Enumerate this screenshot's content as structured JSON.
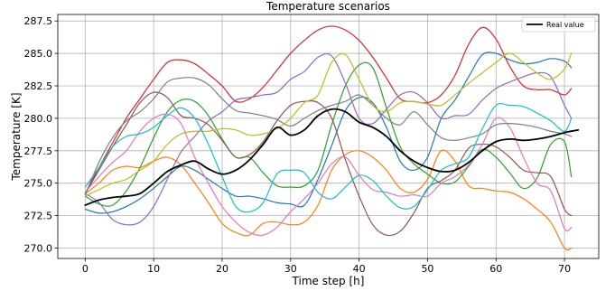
{
  "chart_data": {
    "type": "line",
    "title": "Temperature scenarios",
    "xlabel": "Time step [h]",
    "ylabel": "Temperature [K]",
    "xlim": [
      -4,
      75
    ],
    "ylim": [
      269.2,
      288.0
    ],
    "xticks": [
      0,
      10,
      20,
      30,
      40,
      50,
      60,
      70
    ],
    "yticks": [
      270.0,
      272.5,
      275.0,
      277.5,
      280.0,
      282.5,
      285.0,
      287.5
    ],
    "ytick_labels": [
      "270.0",
      "272.5",
      "275.0",
      "277.5",
      "280.0",
      "282.5",
      "285.0",
      "287.5"
    ],
    "grid": true,
    "legend": {
      "placement": "top-right",
      "entries": [
        "Real value"
      ]
    },
    "series": [
      {
        "name": "Real value",
        "color": "#000000",
        "width": 1.8,
        "x": [
          0,
          2,
          4,
          6,
          8,
          10,
          12,
          14,
          16,
          18,
          20,
          22,
          24,
          26,
          28,
          30,
          32,
          34,
          36,
          38,
          40,
          42,
          44,
          46,
          48,
          50,
          52,
          54,
          56,
          58,
          60,
          62,
          64,
          66,
          68,
          70,
          72
        ],
        "y": [
          273.3,
          273.7,
          273.9,
          274.0,
          274.2,
          275.0,
          275.9,
          276.4,
          276.7,
          276.1,
          275.7,
          276.0,
          276.8,
          278.0,
          279.3,
          278.7,
          279.1,
          280.2,
          280.7,
          280.5,
          279.7,
          279.3,
          278.6,
          277.5,
          276.7,
          276.2,
          275.9,
          276.0,
          276.6,
          277.5,
          278.2,
          278.4,
          278.3,
          278.4,
          278.6,
          278.9,
          279.1
        ]
      },
      {
        "color": "#1f77b4",
        "x": [
          0,
          2,
          4,
          6,
          8,
          10,
          12,
          14,
          16,
          18,
          20,
          22,
          24,
          26,
          28,
          30,
          32,
          34,
          36,
          38,
          40,
          42,
          44,
          46,
          48,
          50,
          52,
          54,
          56,
          58,
          60,
          62,
          64,
          66,
          68,
          70,
          71
        ],
        "y": [
          273.0,
          272.7,
          272.8,
          273.2,
          273.8,
          274.6,
          275.5,
          276.3,
          276.0,
          275.3,
          274.6,
          274.0,
          274.0,
          273.8,
          273.5,
          273.4,
          273.3,
          275.3,
          277.9,
          280.6,
          281.6,
          281.2,
          279.3,
          276.7,
          276.0,
          277.0,
          280.0,
          281.4,
          283.2,
          284.9,
          285.0,
          284.5,
          284.2,
          284.3,
          284.6,
          284.4,
          283.9
        ]
      },
      {
        "color": "#ff7f0e",
        "x": [
          0,
          2,
          4,
          6,
          8,
          10,
          12,
          14,
          16,
          18,
          20,
          22,
          24,
          26,
          28,
          30,
          32,
          34,
          36,
          38,
          40,
          42,
          44,
          46,
          48,
          50,
          52,
          54,
          56,
          58,
          60,
          62,
          64,
          66,
          68,
          70,
          71
        ],
        "y": [
          274.2,
          275.0,
          276.0,
          276.3,
          276.2,
          276.7,
          277.0,
          276.4,
          275.0,
          273.5,
          271.9,
          271.2,
          271.0,
          271.9,
          272.0,
          271.8,
          272.0,
          273.3,
          276.0,
          277.2,
          277.5,
          277.0,
          276.0,
          274.6,
          274.3,
          275.3,
          277.5,
          276.7,
          274.8,
          274.6,
          274.4,
          274.3,
          273.8,
          273.0,
          272.0,
          270.0,
          270.0
        ]
      },
      {
        "color": "#2ca02c",
        "x": [
          0,
          2,
          4,
          6,
          8,
          10,
          12,
          14,
          16,
          18,
          20,
          22,
          24,
          26,
          28,
          30,
          32,
          34,
          36,
          38,
          40,
          42,
          44,
          46,
          48,
          50,
          52,
          54,
          56,
          58,
          60,
          62,
          64,
          66,
          68,
          70,
          71
        ],
        "y": [
          274.0,
          273.4,
          273.3,
          274.4,
          276.2,
          278.5,
          280.5,
          281.4,
          281.3,
          280.2,
          278.4,
          277.0,
          277.0,
          275.8,
          274.8,
          274.7,
          274.8,
          276.0,
          279.5,
          282.5,
          284.1,
          283.9,
          280.8,
          277.8,
          276.5,
          275.7,
          275.0,
          275.1,
          276.3,
          277.6,
          277.0,
          275.8,
          274.6,
          275.4,
          278.0,
          278.2,
          275.5
        ]
      },
      {
        "color": "#d62728",
        "x": [
          0,
          2,
          4,
          6,
          8,
          10,
          12,
          14,
          16,
          18,
          20,
          22,
          24,
          26,
          28,
          30,
          32,
          34,
          36,
          38,
          40,
          42,
          44,
          46,
          48,
          50,
          52,
          54,
          56,
          58,
          60,
          62,
          64,
          66,
          68,
          70,
          71
        ],
        "y": [
          274.2,
          276.2,
          278.1,
          280.0,
          281.5,
          283.0,
          284.3,
          284.5,
          284.2,
          283.4,
          282.5,
          281.3,
          281.5,
          282.4,
          283.7,
          285.0,
          286.0,
          286.8,
          287.1,
          286.8,
          286.0,
          284.7,
          283.1,
          281.5,
          281.3,
          281.2,
          281.8,
          283.3,
          285.7,
          287.0,
          286.1,
          284.0,
          282.5,
          282.2,
          282.2,
          281.8,
          282.3
        ]
      },
      {
        "color": "#9467bd",
        "x": [
          0,
          2,
          4,
          6,
          8,
          10,
          12,
          14,
          16,
          18,
          20,
          22,
          24,
          26,
          28,
          30,
          32,
          34,
          36,
          38,
          40,
          42,
          44,
          46,
          48,
          50,
          52,
          54,
          56,
          58,
          60,
          62,
          64,
          66,
          68,
          70,
          71
        ],
        "y": [
          274.2,
          273.5,
          272.2,
          271.8,
          272.0,
          273.2,
          275.3,
          277.4,
          278.6,
          279.8,
          280.5,
          281.4,
          281.6,
          281.8,
          282.0,
          283.0,
          283.6,
          284.7,
          284.8,
          282.7,
          280.0,
          279.6,
          280.7,
          281.8,
          282.0,
          281.2,
          280.0,
          280.2,
          280.3,
          281.4,
          282.3,
          282.8,
          283.2,
          283.5,
          283.2,
          281.0,
          280.0
        ]
      },
      {
        "color": "#8c564b",
        "x": [
          0,
          2,
          4,
          6,
          8,
          10,
          12,
          14,
          16,
          18,
          20,
          22,
          24,
          26,
          28,
          30,
          32,
          34,
          36,
          38,
          40,
          42,
          44,
          46,
          48,
          50,
          52,
          54,
          56,
          58,
          60,
          62,
          64,
          66,
          68,
          70,
          71
        ],
        "y": [
          274.2,
          276.0,
          277.8,
          279.5,
          281.2,
          282.0,
          281.6,
          280.2,
          280.0,
          279.5,
          278.3,
          277.0,
          277.2,
          278.2,
          279.8,
          281.0,
          281.3,
          281.2,
          280.0,
          276.8,
          274.0,
          271.8,
          271.0,
          271.3,
          272.7,
          274.6,
          275.2,
          276.0,
          277.7,
          278.0,
          277.8,
          277.0,
          276.0,
          275.8,
          275.5,
          273.0,
          272.5
        ]
      },
      {
        "color": "#e377c2",
        "x": [
          0,
          2,
          4,
          6,
          8,
          10,
          12,
          14,
          16,
          18,
          20,
          22,
          24,
          26,
          28,
          30,
          32,
          34,
          36,
          38,
          40,
          42,
          44,
          46,
          48,
          50,
          52,
          54,
          56,
          58,
          60,
          62,
          64,
          66,
          68,
          70,
          71
        ],
        "y": [
          274.3,
          275.5,
          276.6,
          277.5,
          279.0,
          280.0,
          280.3,
          279.6,
          277.0,
          275.0,
          273.2,
          272.0,
          271.2,
          271.0,
          271.6,
          272.8,
          273.8,
          275.0,
          276.5,
          277.0,
          275.6,
          274.5,
          274.3,
          274.0,
          274.1,
          274.0,
          275.0,
          275.5,
          276.4,
          278.0,
          280.0,
          279.3,
          277.0,
          275.0,
          274.4,
          271.5,
          271.6
        ]
      },
      {
        "color": "#7f7f7f",
        "x": [
          0,
          2,
          4,
          6,
          8,
          10,
          12,
          14,
          16,
          18,
          20,
          22,
          24,
          26,
          28,
          30,
          32,
          34,
          36,
          38,
          40,
          42,
          44,
          46,
          48,
          50,
          52,
          54,
          56,
          58,
          60,
          62,
          64,
          66,
          68,
          70,
          71
        ],
        "y": [
          274.1,
          276.6,
          278.5,
          279.8,
          280.5,
          281.5,
          282.8,
          283.1,
          283.1,
          282.6,
          281.5,
          280.6,
          280.4,
          280.2,
          279.9,
          279.4,
          280.0,
          280.6,
          281.0,
          281.3,
          281.8,
          281.0,
          280.0,
          279.5,
          280.5,
          279.5,
          278.5,
          278.3,
          278.5,
          278.8,
          279.5,
          279.6,
          279.5,
          279.3,
          279.0,
          278.8,
          278.6
        ]
      },
      {
        "color": "#bcbd22",
        "x": [
          0,
          2,
          4,
          6,
          8,
          10,
          12,
          14,
          16,
          18,
          20,
          22,
          24,
          26,
          28,
          30,
          32,
          34,
          36,
          38,
          40,
          42,
          44,
          46,
          48,
          50,
          52,
          54,
          56,
          58,
          60,
          62,
          64,
          66,
          68,
          70,
          71
        ],
        "y": [
          274.0,
          274.5,
          275.0,
          275.3,
          276.0,
          276.7,
          278.0,
          278.8,
          279.0,
          279.0,
          279.2,
          279.1,
          278.7,
          278.8,
          279.2,
          280.0,
          281.2,
          281.8,
          284.3,
          284.9,
          283.0,
          281.0,
          280.5,
          281.2,
          281.3,
          281.1,
          281.0,
          281.8,
          282.7,
          283.5,
          284.3,
          285.0,
          284.3,
          283.5,
          283.0,
          283.8,
          285.0
        ]
      },
      {
        "color": "#17becf",
        "x": [
          0,
          2,
          4,
          6,
          8,
          10,
          12,
          14,
          16,
          18,
          20,
          22,
          24,
          26,
          28,
          30,
          32,
          34,
          36,
          38,
          40,
          42,
          44,
          46,
          48,
          50,
          52,
          54,
          56,
          58,
          60,
          62,
          64,
          66,
          68,
          70,
          71
        ],
        "y": [
          274.7,
          276.2,
          277.8,
          278.6,
          278.8,
          279.3,
          280.2,
          280.8,
          280.0,
          278.0,
          275.5,
          273.2,
          272.8,
          273.5,
          275.7,
          276.0,
          275.8,
          274.3,
          273.8,
          274.7,
          275.6,
          275.2,
          274.0,
          273.1,
          273.2,
          274.5,
          276.0,
          276.5,
          277.0,
          279.2,
          281.0,
          281.0,
          280.9,
          280.4,
          279.8,
          279.0,
          280.0
        ]
      }
    ]
  }
}
